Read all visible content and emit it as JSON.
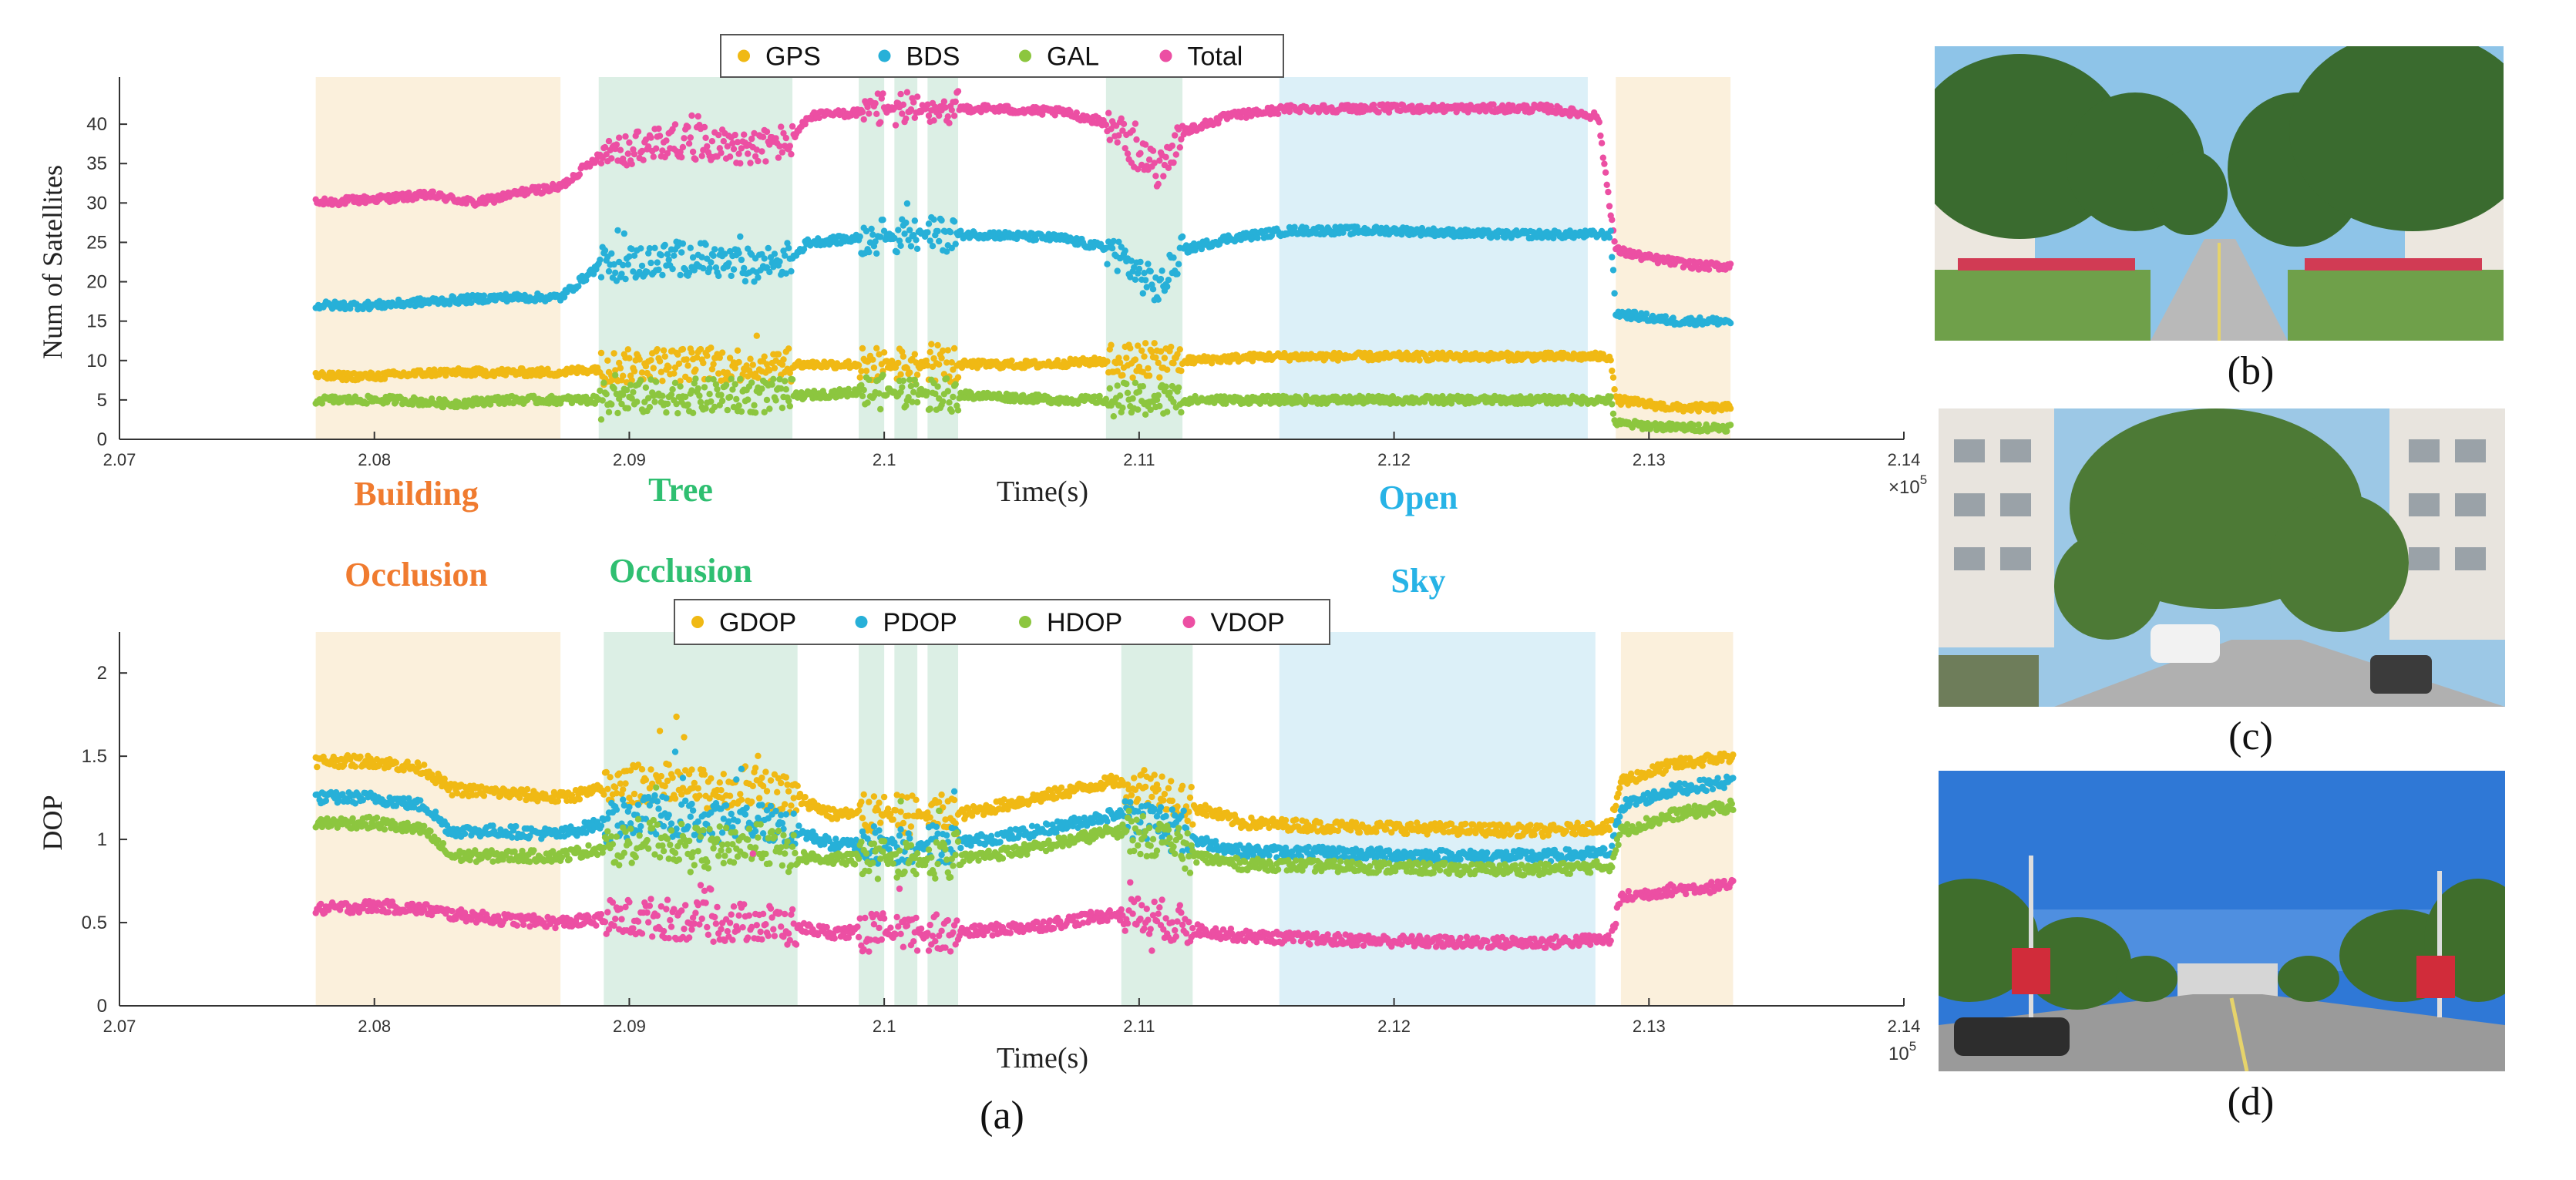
{
  "chart_data": [
    {
      "type": "scatter",
      "id": "satellites",
      "ylabel": "Num of Satellites",
      "xlabel": "Time(s)",
      "x_multiplier": "×10^5",
      "x_multiplier_base": "×10",
      "x_multiplier_exp": "5",
      "xlim": [
        2.07,
        2.14
      ],
      "ylim": [
        0,
        45
      ],
      "xticks": [
        "2.07",
        "2.08",
        "2.09",
        "2.1",
        "2.11",
        "2.12",
        "2.13",
        "2.14"
      ],
      "yticks": [
        "0",
        "5",
        "10",
        "15",
        "20",
        "25",
        "30",
        "35",
        "40"
      ],
      "legend": [
        {
          "name": "GPS",
          "color": "#f0b914"
        },
        {
          "name": "BDS",
          "color": "#27b0d8"
        },
        {
          "name": "GAL",
          "color": "#8cc63f"
        },
        {
          "name": "Total",
          "color": "#ec4fa3"
        }
      ],
      "regions": [
        {
          "type": "building",
          "start": 2.0777,
          "end": 2.0873
        },
        {
          "type": "tree",
          "start": 2.0888,
          "end": 2.0964
        },
        {
          "type": "tree",
          "start": 2.099,
          "end": 2.1
        },
        {
          "type": "tree",
          "start": 2.1004,
          "end": 2.1013
        },
        {
          "type": "tree",
          "start": 2.1017,
          "end": 2.1029
        },
        {
          "type": "tree",
          "start": 2.1087,
          "end": 2.1117
        },
        {
          "type": "open",
          "start": 2.1155,
          "end": 2.1276
        },
        {
          "type": "building",
          "start": 2.1287,
          "end": 2.1332
        }
      ],
      "series": [
        {
          "name": "Total",
          "points": [
            [
              2.0777,
              30
            ],
            [
              2.08,
              30.5
            ],
            [
              2.0822,
              31
            ],
            [
              2.084,
              30
            ],
            [
              2.086,
              31.5
            ],
            [
              2.0873,
              32
            ],
            [
              2.0888,
              36
            ],
            [
              2.0905,
              37
            ],
            [
              2.092,
              38
            ],
            [
              2.0935,
              37.5
            ],
            [
              2.095,
              37
            ],
            [
              2.0964,
              38
            ],
            [
              2.097,
              41
            ],
            [
              2.099,
              41.5
            ],
            [
              2.101,
              42
            ],
            [
              2.104,
              42
            ],
            [
              2.107,
              41.5
            ],
            [
              2.109,
              40
            ],
            [
              2.11,
              36
            ],
            [
              2.1108,
              34
            ],
            [
              2.1117,
              39
            ],
            [
              2.1135,
              41
            ],
            [
              2.116,
              42
            ],
            [
              2.12,
              42
            ],
            [
              2.123,
              42
            ],
            [
              2.126,
              42
            ],
            [
              2.128,
              41
            ],
            [
              2.1287,
              24
            ],
            [
              2.13,
              23
            ],
            [
              2.132,
              22
            ],
            [
              2.1332,
              22
            ]
          ]
        },
        {
          "name": "BDS",
          "points": [
            [
              2.0777,
              17
            ],
            [
              2.08,
              17
            ],
            [
              2.0822,
              17.5
            ],
            [
              2.085,
              18
            ],
            [
              2.0873,
              18
            ],
            [
              2.0888,
              22
            ],
            [
              2.0905,
              22.5
            ],
            [
              2.0925,
              23
            ],
            [
              2.0945,
              22
            ],
            [
              2.0964,
              23
            ],
            [
              2.097,
              25
            ],
            [
              2.099,
              25.5
            ],
            [
              2.101,
              26
            ],
            [
              2.104,
              26
            ],
            [
              2.107,
              25.5
            ],
            [
              2.109,
              24
            ],
            [
              2.11,
              21
            ],
            [
              2.1108,
              19
            ],
            [
              2.1117,
              24
            ],
            [
              2.1135,
              25.5
            ],
            [
              2.116,
              26.5
            ],
            [
              2.12,
              26.5
            ],
            [
              2.124,
              26
            ],
            [
              2.127,
              26
            ],
            [
              2.1285,
              26
            ],
            [
              2.1287,
              16
            ],
            [
              2.131,
              15
            ],
            [
              2.1332,
              15
            ]
          ]
        },
        {
          "name": "GPS",
          "points": [
            [
              2.0777,
              8
            ],
            [
              2.08,
              8
            ],
            [
              2.0825,
              8.5
            ],
            [
              2.085,
              8.5
            ],
            [
              2.0873,
              8.5
            ],
            [
              2.0888,
              9
            ],
            [
              2.091,
              9.5
            ],
            [
              2.094,
              9.5
            ],
            [
              2.0964,
              9.5
            ],
            [
              2.098,
              9.5
            ],
            [
              2.1,
              9.5
            ],
            [
              2.103,
              9.5
            ],
            [
              2.106,
              9.5
            ],
            [
              2.109,
              10
            ],
            [
              2.112,
              10
            ],
            [
              2.115,
              10.5
            ],
            [
              2.118,
              10.5
            ],
            [
              2.121,
              10.5
            ],
            [
              2.124,
              10.5
            ],
            [
              2.127,
              10.5
            ],
            [
              2.1285,
              10.5
            ],
            [
              2.1287,
              5
            ],
            [
              2.131,
              4
            ],
            [
              2.1332,
              4
            ]
          ]
        },
        {
          "name": "GAL",
          "points": [
            [
              2.0777,
              5
            ],
            [
              2.081,
              5
            ],
            [
              2.083,
              4.5
            ],
            [
              2.085,
              5
            ],
            [
              2.0873,
              5
            ],
            [
              2.0888,
              5
            ],
            [
              2.091,
              5.5
            ],
            [
              2.094,
              5.5
            ],
            [
              2.0964,
              5.5
            ],
            [
              2.099,
              6
            ],
            [
              2.101,
              6
            ],
            [
              2.104,
              5.5
            ],
            [
              2.107,
              5
            ],
            [
              2.11,
              5
            ],
            [
              2.113,
              5
            ],
            [
              2.117,
              5
            ],
            [
              2.121,
              5
            ],
            [
              2.125,
              5
            ],
            [
              2.1285,
              5
            ],
            [
              2.1287,
              2
            ],
            [
              2.131,
              1.5
            ],
            [
              2.1332,
              1.5
            ]
          ]
        }
      ]
    },
    {
      "type": "scatter",
      "id": "dop",
      "ylabel": "DOP",
      "xlabel": "Time(s)",
      "x_multiplier": "10^5",
      "x_multiplier_base": "10",
      "x_multiplier_exp": "5",
      "xlim": [
        2.07,
        2.14
      ],
      "ylim": [
        0,
        2.2
      ],
      "xticks": [
        "2.07",
        "2.08",
        "2.09",
        "2.1",
        "2.11",
        "2.12",
        "2.13",
        "2.14"
      ],
      "yticks": [
        "0",
        "0.5",
        "1",
        "1.5",
        "2"
      ],
      "legend": [
        {
          "name": "GDOP",
          "color": "#f0b914"
        },
        {
          "name": "PDOP",
          "color": "#27b0d8"
        },
        {
          "name": "HDOP",
          "color": "#8cc63f"
        },
        {
          "name": "VDOP",
          "color": "#ec4fa3"
        }
      ],
      "regions": [
        {
          "type": "building",
          "start": 2.0777,
          "end": 2.0873
        },
        {
          "type": "tree",
          "start": 2.089,
          "end": 2.0966
        },
        {
          "type": "tree",
          "start": 2.099,
          "end": 2.1
        },
        {
          "type": "tree",
          "start": 2.1004,
          "end": 2.1013
        },
        {
          "type": "tree",
          "start": 2.1017,
          "end": 2.1029
        },
        {
          "type": "tree",
          "start": 2.1093,
          "end": 2.1121
        },
        {
          "type": "open",
          "start": 2.1155,
          "end": 2.1279
        },
        {
          "type": "building",
          "start": 2.1289,
          "end": 2.1333
        }
      ],
      "series": [
        {
          "name": "GDOP",
          "points": [
            [
              2.0777,
              1.47
            ],
            [
              2.08,
              1.47
            ],
            [
              2.082,
              1.42
            ],
            [
              2.083,
              1.3
            ],
            [
              2.085,
              1.28
            ],
            [
              2.0873,
              1.25
            ],
            [
              2.089,
              1.3
            ],
            [
              2.091,
              1.35
            ],
            [
              2.093,
              1.3
            ],
            [
              2.095,
              1.32
            ],
            [
              2.0966,
              1.25
            ],
            [
              2.098,
              1.15
            ],
            [
              2.1,
              1.15
            ],
            [
              2.103,
              1.15
            ],
            [
              2.106,
              1.25
            ],
            [
              2.109,
              1.35
            ],
            [
              2.111,
              1.3
            ],
            [
              2.1121,
              1.2
            ],
            [
              2.114,
              1.1
            ],
            [
              2.117,
              1.08
            ],
            [
              2.12,
              1.07
            ],
            [
              2.123,
              1.06
            ],
            [
              2.126,
              1.05
            ],
            [
              2.1285,
              1.08
            ],
            [
              2.1289,
              1.35
            ],
            [
              2.131,
              1.45
            ],
            [
              2.1333,
              1.5
            ]
          ]
        },
        {
          "name": "PDOP",
          "points": [
            [
              2.0777,
              1.25
            ],
            [
              2.08,
              1.25
            ],
            [
              2.082,
              1.2
            ],
            [
              2.083,
              1.05
            ],
            [
              2.085,
              1.05
            ],
            [
              2.0873,
              1.03
            ],
            [
              2.089,
              1.1
            ],
            [
              2.091,
              1.15
            ],
            [
              2.093,
              1.1
            ],
            [
              2.095,
              1.12
            ],
            [
              2.0966,
              1.05
            ],
            [
              2.098,
              0.97
            ],
            [
              2.1,
              0.97
            ],
            [
              2.103,
              0.98
            ],
            [
              2.106,
              1.05
            ],
            [
              2.109,
              1.15
            ],
            [
              2.111,
              1.1
            ],
            [
              2.1121,
              1.0
            ],
            [
              2.114,
              0.93
            ],
            [
              2.117,
              0.92
            ],
            [
              2.12,
              0.91
            ],
            [
              2.123,
              0.9
            ],
            [
              2.126,
              0.9
            ],
            [
              2.1285,
              0.92
            ],
            [
              2.1289,
              1.2
            ],
            [
              2.131,
              1.3
            ],
            [
              2.1333,
              1.35
            ]
          ]
        },
        {
          "name": "HDOP",
          "points": [
            [
              2.0777,
              1.1
            ],
            [
              2.08,
              1.1
            ],
            [
              2.082,
              1.05
            ],
            [
              2.083,
              0.9
            ],
            [
              2.085,
              0.9
            ],
            [
              2.0873,
              0.9
            ],
            [
              2.089,
              0.95
            ],
            [
              2.091,
              1.0
            ],
            [
              2.093,
              0.95
            ],
            [
              2.095,
              0.98
            ],
            [
              2.0966,
              0.9
            ],
            [
              2.098,
              0.88
            ],
            [
              2.1,
              0.88
            ],
            [
              2.103,
              0.88
            ],
            [
              2.106,
              0.95
            ],
            [
              2.109,
              1.05
            ],
            [
              2.111,
              1.0
            ],
            [
              2.1121,
              0.9
            ],
            [
              2.114,
              0.85
            ],
            [
              2.117,
              0.84
            ],
            [
              2.12,
              0.83
            ],
            [
              2.123,
              0.82
            ],
            [
              2.126,
              0.82
            ],
            [
              2.1285,
              0.84
            ],
            [
              2.1289,
              1.05
            ],
            [
              2.131,
              1.15
            ],
            [
              2.1333,
              1.2
            ]
          ]
        },
        {
          "name": "VDOP",
          "points": [
            [
              2.0777,
              0.58
            ],
            [
              2.08,
              0.6
            ],
            [
              2.082,
              0.58
            ],
            [
              2.083,
              0.55
            ],
            [
              2.085,
              0.52
            ],
            [
              2.0873,
              0.5
            ],
            [
              2.089,
              0.52
            ],
            [
              2.091,
              0.53
            ],
            [
              2.093,
              0.5
            ],
            [
              2.095,
              0.5
            ],
            [
              2.0966,
              0.47
            ],
            [
              2.098,
              0.44
            ],
            [
              2.1,
              0.44
            ],
            [
              2.103,
              0.44
            ],
            [
              2.106,
              0.48
            ],
            [
              2.109,
              0.55
            ],
            [
              2.111,
              0.52
            ],
            [
              2.1121,
              0.46
            ],
            [
              2.114,
              0.42
            ],
            [
              2.117,
              0.4
            ],
            [
              2.12,
              0.39
            ],
            [
              2.123,
              0.38
            ],
            [
              2.126,
              0.38
            ],
            [
              2.1285,
              0.4
            ],
            [
              2.1289,
              0.65
            ],
            [
              2.131,
              0.7
            ],
            [
              2.1333,
              0.72
            ]
          ]
        }
      ]
    }
  ],
  "annotations": {
    "building": {
      "line1": "Building",
      "line2": "Occlusion",
      "color": "#f07b2f"
    },
    "tree": {
      "line1": "Tree",
      "line2": "Occlusion",
      "color": "#2fbf71"
    },
    "open": {
      "line1": "Open",
      "line2": "Sky",
      "color": "#27b3e6"
    }
  },
  "region_colors": {
    "building": "#fbf0dc",
    "tree": "#dcefe5",
    "open": "#dcf0f8"
  },
  "axis_color": "#333333",
  "panel_labels": {
    "a": "(a)",
    "b": "(b)",
    "c": "(c)",
    "d": "(d)"
  },
  "photos": {
    "b": {
      "sky": "#8ec4e8",
      "tree": "#3a6b2f",
      "road": "#b9b9b9",
      "building": "#ece7df"
    },
    "c": {
      "sky": "#9cc8e6",
      "tree": "#4d7a36",
      "road": "#b0b0b0",
      "building": "#e8e4de"
    },
    "d": {
      "sky": "#2f78d6",
      "tree": "#3f6e2c",
      "road": "#9a9a9a",
      "building": "#d6d6d6"
    }
  }
}
